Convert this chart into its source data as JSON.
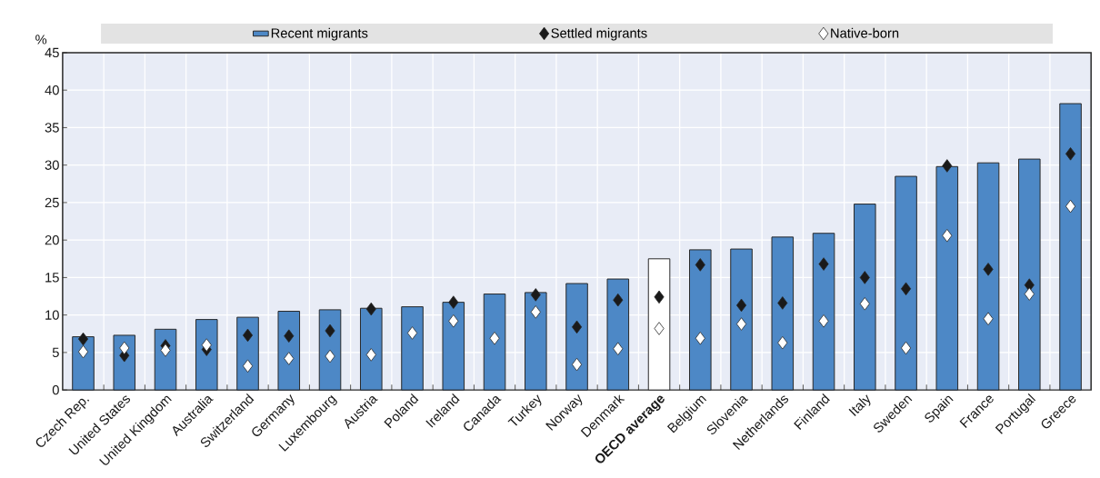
{
  "chart_data": {
    "type": "bar",
    "ylabel": "%",
    "categories": [
      "Czech Rep.",
      "United States",
      "United Kingdom",
      "Australia",
      "Switzerland",
      "Germany",
      "Luxembourg",
      "Austria",
      "Poland",
      "Ireland",
      "Canada",
      "Turkey",
      "Norway",
      "Denmark",
      "**OECD average**",
      "Belgium",
      "Slovenia",
      "Netherlands",
      "Finland",
      "Italy",
      "Sweden",
      "Spain",
      "France",
      "Portugal",
      "Greece"
    ],
    "series": [
      {
        "name": "Recent migrants",
        "color": "#4d88c6",
        "colors": [
          "#4d88c6",
          "#4d88c6",
          "#4d88c6",
          "#4d88c6",
          "#4d88c6",
          "#4d88c6",
          "#4d88c6",
          "#4d88c6",
          "#4d88c6",
          "#4d88c6",
          "#4d88c6",
          "#4d88c6",
          "#4d88c6",
          "#4d88c6",
          "#ffffff",
          "#4d88c6",
          "#4d88c6",
          "#4d88c6",
          "#4d88c6",
          "#4d88c6",
          "#4d88c6",
          "#4d88c6",
          "#4d88c6",
          "#4d88c6",
          "#4d88c6"
        ],
        "values": [
          7.1,
          7.3,
          8.1,
          9.4,
          9.7,
          10.5,
          10.7,
          10.9,
          11.1,
          11.7,
          12.8,
          13.0,
          14.2,
          14.8,
          17.5,
          18.7,
          18.8,
          20.4,
          20.9,
          24.8,
          28.5,
          29.8,
          30.3,
          30.8,
          38.2
        ]
      },
      {
        "name": "Settled migrants",
        "type": "scatter",
        "color": "#1a1a1a",
        "values": [
          6.8,
          4.6,
          5.9,
          5.4,
          7.3,
          7.2,
          7.9,
          10.8,
          null,
          11.7,
          null,
          12.7,
          8.4,
          12.0,
          12.4,
          16.7,
          11.3,
          11.6,
          16.8,
          15.0,
          13.5,
          29.9,
          16.1,
          14.0,
          31.5
        ]
      },
      {
        "name": "Native-born",
        "type": "scatter",
        "color": "#ffffff",
        "values": [
          5.1,
          5.6,
          5.3,
          6.0,
          3.2,
          4.2,
          4.5,
          4.7,
          7.6,
          9.2,
          6.9,
          10.4,
          3.4,
          5.5,
          8.2,
          6.9,
          8.8,
          6.3,
          9.2,
          11.5,
          5.6,
          20.6,
          9.5,
          12.8,
          24.5
        ]
      }
    ],
    "marker": "diamond",
    "ylim": [
      0,
      45
    ],
    "yticks": [
      0,
      5,
      10,
      15,
      20,
      25,
      30,
      35,
      40,
      45
    ],
    "grid": true,
    "legend": "top"
  }
}
